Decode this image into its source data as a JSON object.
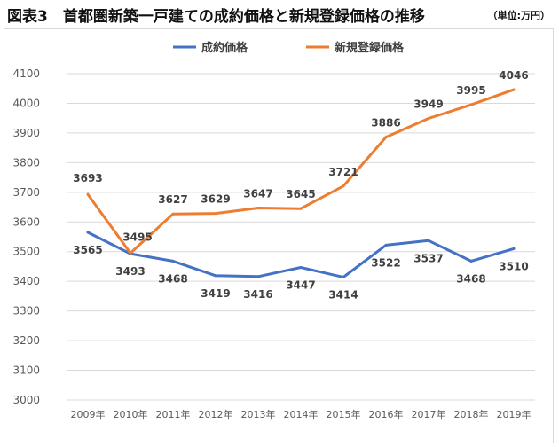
{
  "header": {
    "title": "図表3　首都圏新築一戸建ての成約価格と新規登録価格の推移",
    "unit": "（単位:万円）"
  },
  "colors": {
    "series_1": "#4472c4",
    "series_2": "#ed7d31",
    "grid": "#d9d9d9"
  },
  "chart_data": {
    "type": "line",
    "title": "",
    "xlabel": "",
    "ylabel": "",
    "legend_position": "top-center",
    "grid": true,
    "ylim": [
      3000,
      4100
    ],
    "y_ticks": [
      3000,
      3100,
      3200,
      3300,
      3400,
      3500,
      3600,
      3700,
      3800,
      3900,
      4000,
      4100
    ],
    "x": [
      "2009年",
      "2010年",
      "2011年",
      "2012年",
      "2013年",
      "2014年",
      "2015年",
      "2016年",
      "2017年",
      "2018年",
      "2019年"
    ],
    "series": [
      {
        "name": "成約価格",
        "color": "#4472c4",
        "values": [
          3565,
          3493,
          3468,
          3419,
          3416,
          3447,
          3414,
          3522,
          3537,
          3468,
          3510
        ]
      },
      {
        "name": "新規登録価格",
        "color": "#ed7d31",
        "values": [
          3693,
          3495,
          3627,
          3629,
          3647,
          3645,
          3721,
          3886,
          3949,
          3995,
          4046
        ]
      }
    ]
  }
}
